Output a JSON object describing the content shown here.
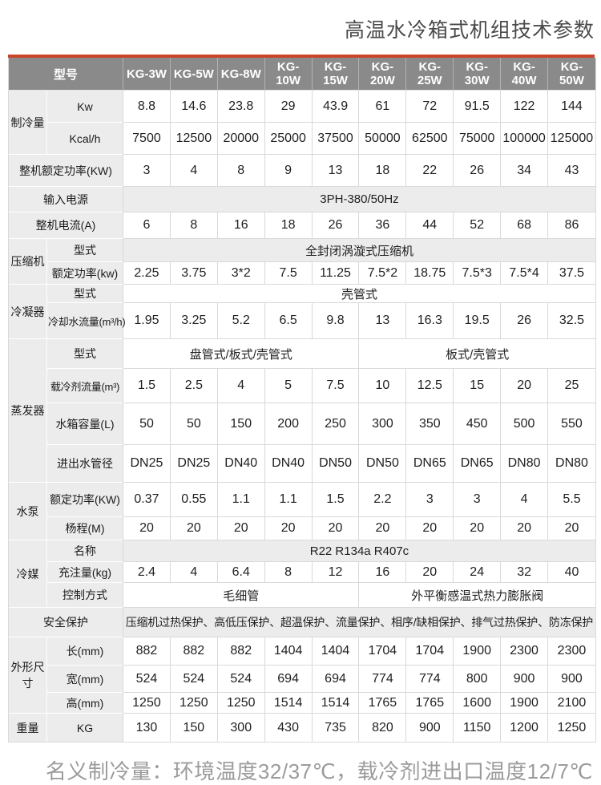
{
  "title": "高温水冷箱式机组技术参数",
  "footer_note": "名义制冷量：环境温度32/37℃，载冷剂进出口温度12/7℃",
  "colors": {
    "accent_bar": "#c9452a",
    "header_bg": "#8a8a8a",
    "label_bg": "#ececec",
    "grid_line": "#d9d9d9"
  },
  "table": {
    "header": {
      "model_label": "型号",
      "models": [
        "KG-3W",
        "KG-5W",
        "KG-8W",
        "KG-10W",
        "KG-15W",
        "KG-20W",
        "KG-25W",
        "KG-30W",
        "KG-40W",
        "KG-50W"
      ]
    },
    "cooling": {
      "group": "制冷量",
      "kw_label": "Kw",
      "kw": [
        "8.8",
        "14.6",
        "23.8",
        "29",
        "43.9",
        "61",
        "72",
        "91.5",
        "122",
        "144"
      ],
      "kcal_label": "Kcal/h",
      "kcal": [
        "7500",
        "12500",
        "20000",
        "25000",
        "37500",
        "50000",
        "62500",
        "75000",
        "100000",
        "125000"
      ]
    },
    "rated_power": {
      "label": "整机额定功率(KW)",
      "values": [
        "3",
        "4",
        "8",
        "9",
        "13",
        "18",
        "22",
        "26",
        "34",
        "43"
      ]
    },
    "power_supply": {
      "label": "输入电源",
      "value": "3PH-380/50Hz"
    },
    "current": {
      "label": "整机电流(A)",
      "values": [
        "6",
        "8",
        "16",
        "18",
        "26",
        "36",
        "44",
        "52",
        "68",
        "86"
      ]
    },
    "compressor": {
      "group": "压缩机",
      "type_label": "型式",
      "type_value": "全封闭涡漩式压缩机",
      "power_label": "额定功率(kw)",
      "power": [
        "2.25",
        "3.75",
        "3*2",
        "7.5",
        "11.25",
        "7.5*2",
        "18.75",
        "7.5*3",
        "7.5*4",
        "37.5"
      ]
    },
    "condenser": {
      "group": "冷凝器",
      "type_label": "型式",
      "type_value": "壳管式",
      "flow_label": "冷却水流量(m³/h)",
      "flow": [
        "1.95",
        "3.25",
        "5.2",
        "6.5",
        "9.8",
        "13",
        "16.3",
        "19.5",
        "26",
        "32.5"
      ]
    },
    "evaporator": {
      "group": "蒸发器",
      "type_label": "型式",
      "type_left": "盘管式/板式/壳管式",
      "type_right": "板式/壳管式",
      "flow_label": "载冷剂流量(m³)",
      "flow": [
        "1.5",
        "2.5",
        "4",
        "5",
        "7.5",
        "10",
        "12.5",
        "15",
        "20",
        "25"
      ],
      "tank_label": "水箱容量(L)",
      "tank": [
        "50",
        "50",
        "150",
        "200",
        "250",
        "300",
        "350",
        "450",
        "500",
        "550"
      ],
      "pipe_label": "进出水管径",
      "pipe": [
        "DN25",
        "DN25",
        "DN40",
        "DN40",
        "DN50",
        "DN50",
        "DN65",
        "DN65",
        "DN80",
        "DN80"
      ]
    },
    "pump": {
      "group": "水泵",
      "power_label": "额定功率(KW)",
      "power": [
        "0.37",
        "0.55",
        "1.1",
        "1.1",
        "1.5",
        "2.2",
        "3",
        "3",
        "4",
        "5.5"
      ],
      "head_label": "杨程(M)",
      "head": [
        "20",
        "20",
        "20",
        "20",
        "20",
        "20",
        "20",
        "20",
        "20",
        "20"
      ]
    },
    "refrigerant": {
      "group": "冷媒",
      "name_label": "名称",
      "name_value": "R22 R134a R407c",
      "charge_label": "充注量(kg)",
      "charge": [
        "2.4",
        "4",
        "6.4",
        "8",
        "12",
        "16",
        "20",
        "24",
        "32",
        "40"
      ],
      "control_label": "控制方式",
      "control_left": "毛细管",
      "control_right": "外平衡感温式热力膨胀阀"
    },
    "safety": {
      "label": "安全保护",
      "value": "压缩机过热保护、高低压保护、超温保护、流量保护、相序/缺相保护、排气过热保护、防冻保护"
    },
    "dimensions": {
      "group": "外形尺寸",
      "length_label": "长(mm)",
      "length": [
        "882",
        "882",
        "882",
        "1404",
        "1404",
        "1704",
        "1704",
        "1900",
        "2300",
        "2300"
      ],
      "width_label": "宽(mm)",
      "width": [
        "524",
        "524",
        "524",
        "694",
        "694",
        "774",
        "774",
        "800",
        "900",
        "900"
      ],
      "height_label": "高(mm)",
      "height": [
        "1250",
        "1250",
        "1250",
        "1514",
        "1514",
        "1765",
        "1765",
        "1600",
        "1900",
        "2100"
      ]
    },
    "weight": {
      "group": "重量",
      "unit_label": "KG",
      "values": [
        "130",
        "150",
        "300",
        "430",
        "735",
        "820",
        "900",
        "1150",
        "1200",
        "1250"
      ]
    }
  }
}
